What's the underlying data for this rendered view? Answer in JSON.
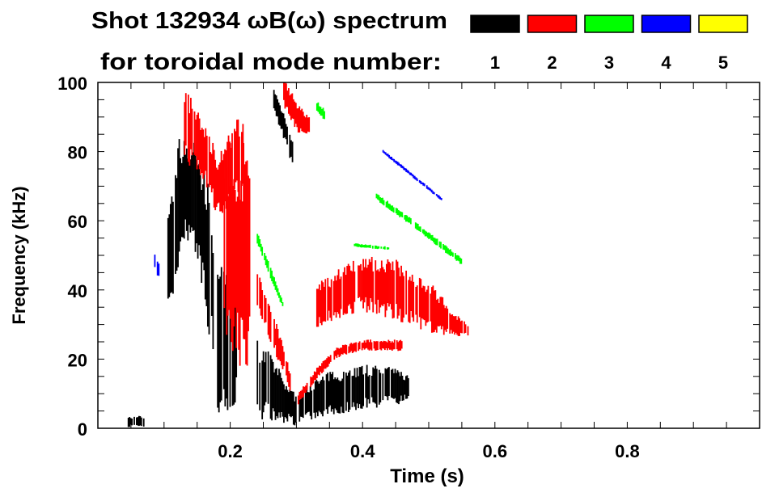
{
  "chart_data": {
    "type": "heatmap",
    "title": "Shot 132934 ωB(ω) spectrum",
    "legend_title": "for toroidal mode number:",
    "legend_placement": "top-right",
    "legend": [
      {
        "mode": "1",
        "color": "#000000"
      },
      {
        "mode": "2",
        "color": "#ff0000"
      },
      {
        "mode": "3",
        "color": "#00ff00"
      },
      {
        "mode": "4",
        "color": "#0000ff"
      },
      {
        "mode": "5",
        "color": "#ffff00"
      }
    ],
    "xlabel": "Time (s)",
    "ylabel": "Frequency (kHz)",
    "xlim": [
      0,
      1.0
    ],
    "ylim": [
      0,
      100
    ],
    "xticks": [
      0.2,
      0.4,
      0.6,
      0.8
    ],
    "xtick_labels": [
      "0.2",
      "0.4",
      "0.6",
      "0.8"
    ],
    "yticks": [
      0,
      20,
      40,
      60,
      80,
      100
    ],
    "ytick_labels": [
      "0",
      "20",
      "40",
      "60",
      "80",
      "100"
    ],
    "x_minor_step": 0.05,
    "y_minor_step": 5,
    "grid": false,
    "tracks_note": "approximate mode activity regions: points are [time_s, center_kHz, bandwidth_kHz]",
    "tracks": [
      {
        "mode": "1",
        "points": [
          [
            0.105,
            45,
            30
          ],
          [
            0.12,
            65,
            35
          ],
          [
            0.135,
            70,
            30
          ],
          [
            0.15,
            65,
            30
          ],
          [
            0.165,
            50,
            40
          ],
          [
            0.175,
            35,
            30
          ]
        ]
      },
      {
        "mode": "1",
        "points": [
          [
            0.24,
            14,
            22
          ],
          [
            0.26,
            12,
            18
          ],
          [
            0.28,
            8,
            12
          ],
          [
            0.3,
            5,
            8
          ],
          [
            0.32,
            8,
            10
          ],
          [
            0.35,
            10,
            12
          ],
          [
            0.4,
            12,
            12
          ],
          [
            0.45,
            12,
            10
          ],
          [
            0.47,
            12,
            6
          ]
        ]
      },
      {
        "mode": "1",
        "points": [
          [
            0.265,
            95,
            6
          ],
          [
            0.285,
            85,
            8
          ],
          [
            0.295,
            78,
            8
          ]
        ]
      },
      {
        "mode": "1",
        "points": [
          [
            0.18,
            25,
            40
          ],
          [
            0.21,
            25,
            40
          ]
        ]
      },
      {
        "mode": "1",
        "points": [
          [
            0.045,
            2,
            3
          ],
          [
            0.07,
            2,
            3
          ]
        ]
      },
      {
        "mode": "2",
        "points": [
          [
            0.13,
            88,
            20
          ],
          [
            0.16,
            80,
            15
          ],
          [
            0.18,
            70,
            18
          ],
          [
            0.2,
            75,
            20
          ],
          [
            0.22,
            80,
            25
          ]
        ]
      },
      {
        "mode": "2",
        "points": [
          [
            0.19,
            50,
            60
          ],
          [
            0.23,
            50,
            60
          ]
        ]
      },
      {
        "mode": "2",
        "points": [
          [
            0.24,
            40,
            10
          ],
          [
            0.26,
            30,
            10
          ],
          [
            0.28,
            20,
            8
          ],
          [
            0.295,
            10,
            4
          ]
        ]
      },
      {
        "mode": "2",
        "points": [
          [
            0.3,
            8,
            3
          ],
          [
            0.33,
            16,
            3
          ],
          [
            0.36,
            22,
            3
          ],
          [
            0.4,
            24,
            3
          ],
          [
            0.46,
            24,
            3
          ]
        ]
      },
      {
        "mode": "2",
        "points": [
          [
            0.33,
            35,
            12
          ],
          [
            0.37,
            40,
            14
          ],
          [
            0.4,
            42,
            15
          ],
          [
            0.45,
            40,
            16
          ],
          [
            0.5,
            35,
            14
          ],
          [
            0.54,
            30,
            6
          ],
          [
            0.56,
            28,
            3
          ]
        ]
      },
      {
        "mode": "2",
        "points": [
          [
            0.28,
            97,
            8
          ],
          [
            0.3,
            90,
            8
          ],
          [
            0.32,
            87,
            5
          ]
        ]
      },
      {
        "mode": "3",
        "points": [
          [
            0.24,
            55,
            3
          ],
          [
            0.26,
            45,
            3
          ],
          [
            0.28,
            35,
            2
          ]
        ]
      },
      {
        "mode": "3",
        "points": [
          [
            0.42,
            67,
            2
          ],
          [
            0.47,
            60,
            2
          ],
          [
            0.55,
            48,
            2
          ]
        ]
      },
      {
        "mode": "3",
        "points": [
          [
            0.385,
            53,
            1
          ],
          [
            0.44,
            52,
            1
          ]
        ]
      },
      {
        "mode": "3",
        "points": [
          [
            0.33,
            93,
            3
          ],
          [
            0.345,
            90,
            3
          ]
        ]
      },
      {
        "mode": "4",
        "points": [
          [
            0.085,
            48,
            5
          ],
          [
            0.095,
            45,
            5
          ]
        ]
      },
      {
        "mode": "4",
        "points": [
          [
            0.43,
            80,
            1
          ],
          [
            0.52,
            66,
            1
          ]
        ]
      }
    ]
  }
}
